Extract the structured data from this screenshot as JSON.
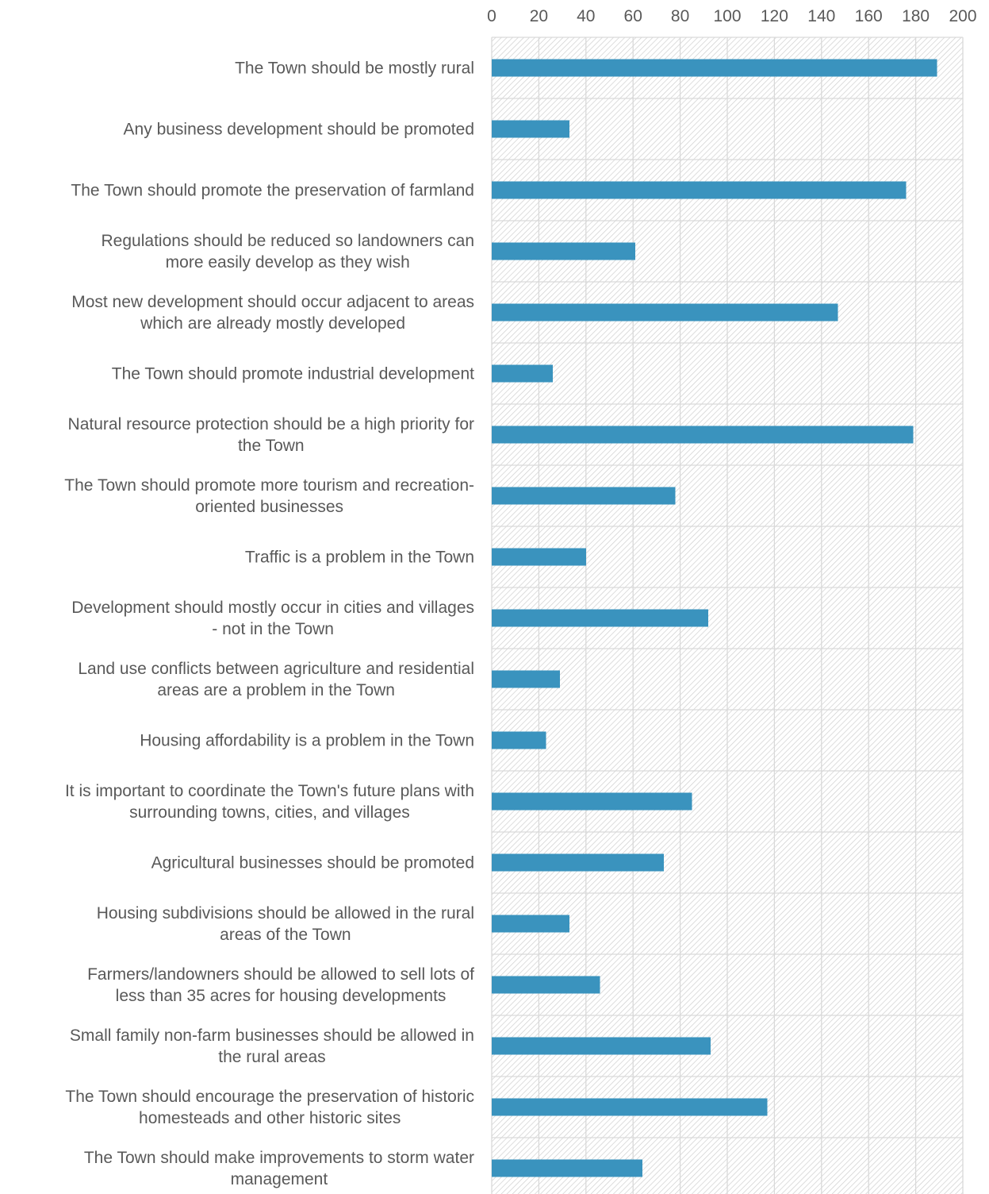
{
  "chart_data": {
    "type": "bar",
    "orientation": "horizontal",
    "title": "",
    "xlabel": "",
    "ylabel": "",
    "xlim": [
      0,
      200
    ],
    "x_ticks": [
      "0",
      "20",
      "40",
      "60",
      "80",
      "100",
      "120",
      "140",
      "160",
      "180",
      "200"
    ],
    "x_axis_position": "top",
    "grid": true,
    "plot_background": "diagonal-hatch",
    "bar_color": "#3a93be",
    "categories": [
      [
        "The Town should be mostly rural"
      ],
      [
        "Any business development should be promoted"
      ],
      [
        "The Town should promote the preservation of farmland"
      ],
      [
        "Regulations should be reduced so landowners can",
        "more easily develop as they wish"
      ],
      [
        "Most new development should occur adjacent to areas",
        "which are already mostly developed"
      ],
      [
        "The Town should promote industrial development"
      ],
      [
        "Natural resource protection should be a high priority for",
        "the Town"
      ],
      [
        "The Town should promote more tourism and recreation-",
        "oriented businesses"
      ],
      [
        "Traffic is a problem in the Town"
      ],
      [
        "Development should mostly occur in cities and villages",
        "- not in the Town"
      ],
      [
        "Land use conflicts between agriculture and residential",
        "areas are a problem in the Town"
      ],
      [
        "Housing affordability is a problem in the Town"
      ],
      [
        "It is important to coordinate the Town's future plans with",
        "surrounding towns, cities, and villages"
      ],
      [
        "Agricultural businesses should be promoted"
      ],
      [
        "Housing subdivisions should be allowed in the rural",
        "areas of the Town"
      ],
      [
        "Farmers/landowners should be allowed to sell lots of",
        "less than 35 acres for housing developments"
      ],
      [
        "Small family non-farm businesses should be allowed in",
        "the rural areas"
      ],
      [
        "The Town should encourage the preservation of historic",
        "homesteads and other historic sites"
      ],
      [
        "The Town should make improvements to storm water",
        "management"
      ]
    ],
    "values": [
      189,
      33,
      176,
      61,
      147,
      26,
      179,
      78,
      40,
      92,
      29,
      23,
      85,
      73,
      33,
      46,
      93,
      117,
      64
    ]
  }
}
